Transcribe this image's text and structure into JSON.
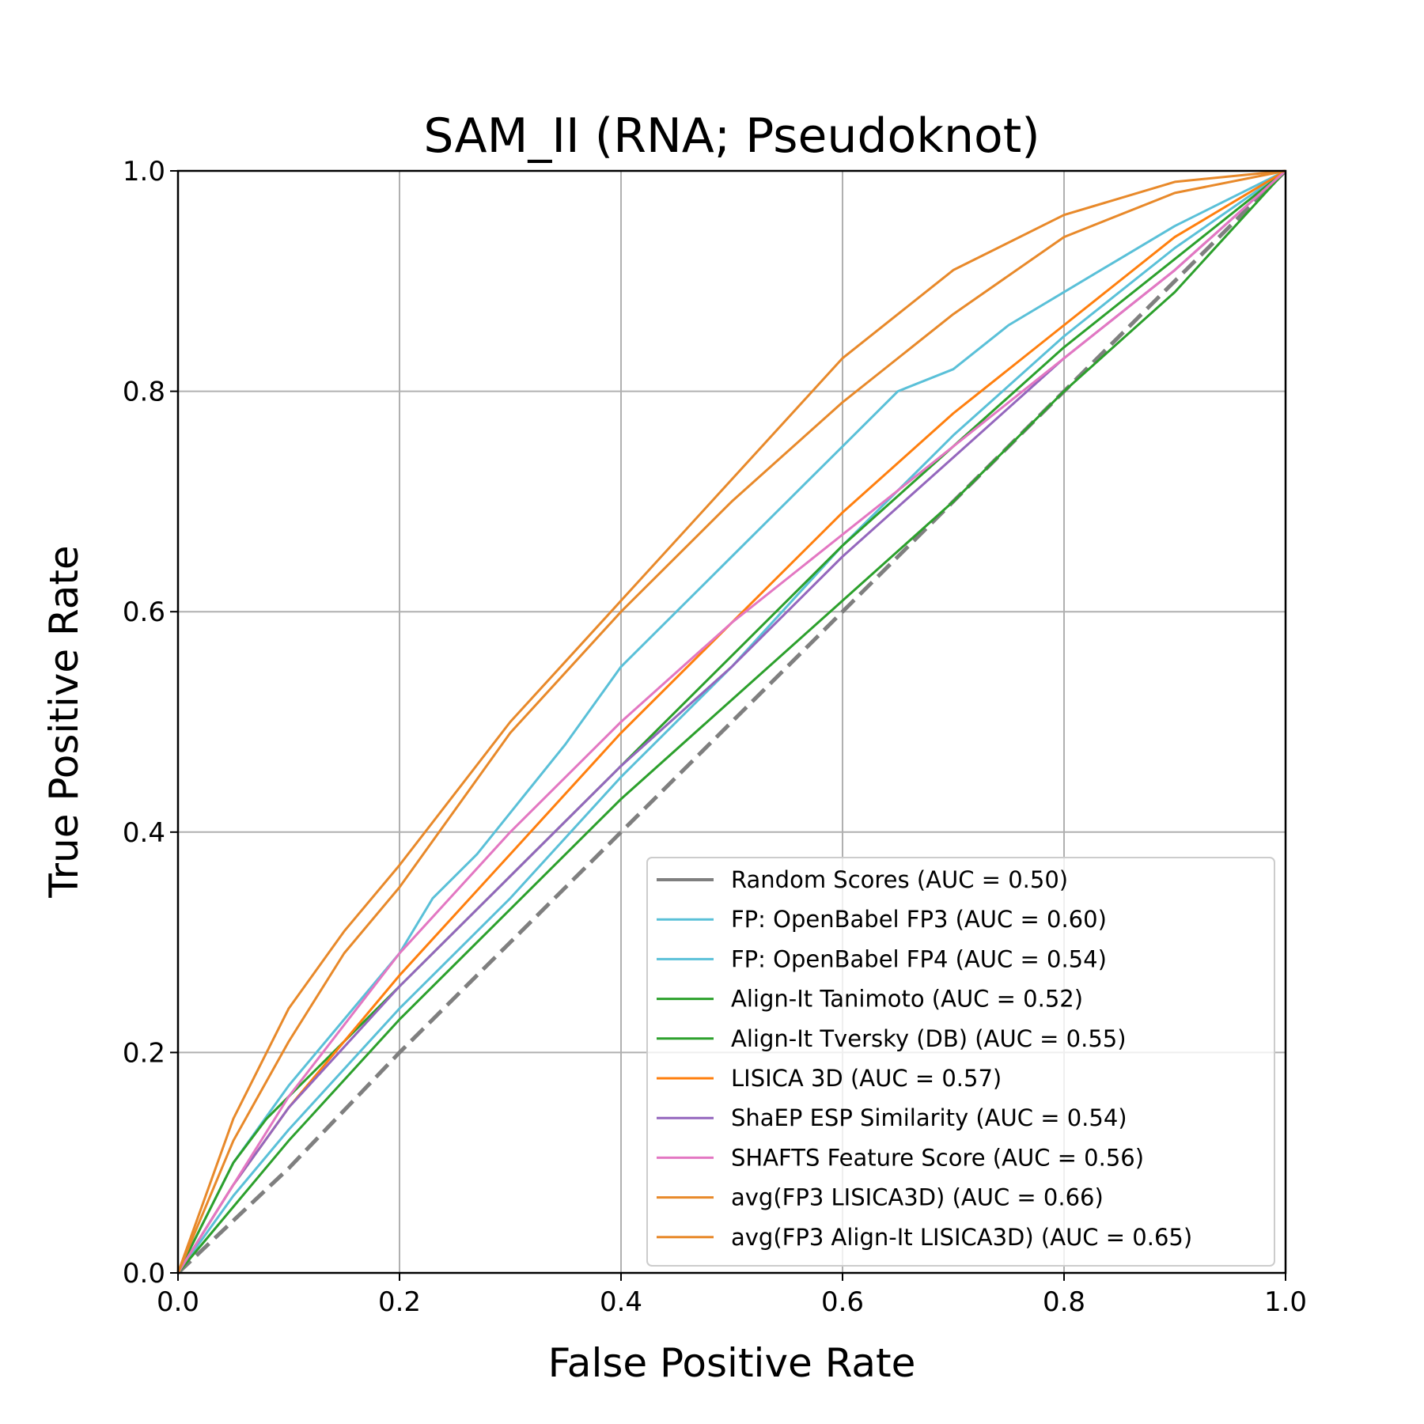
{
  "chart_data": {
    "type": "line",
    "title": "SAM_II (RNA; Pseudoknot)",
    "xlabel": "False Positive Rate",
    "ylabel": "True Positive Rate",
    "xlim": [
      0.0,
      1.0
    ],
    "ylim": [
      0.0,
      1.0
    ],
    "xticks": [
      "0.0",
      "0.2",
      "0.4",
      "0.6",
      "0.8",
      "1.0"
    ],
    "yticks": [
      "0.0",
      "0.2",
      "0.4",
      "0.6",
      "0.8",
      "1.0"
    ],
    "grid": true,
    "legend_position": "lower-right",
    "series": [
      {
        "name": "Random Scores (AUC = 0.50)",
        "color": "#7f7f7f",
        "dash": true,
        "x": [
          0,
          0.1,
          0.2,
          0.3,
          0.4,
          0.5,
          0.6,
          0.7,
          0.8,
          0.9,
          1.0
        ],
        "y": [
          0,
          0.095,
          0.2,
          0.3,
          0.4,
          0.5,
          0.6,
          0.7,
          0.8,
          0.9,
          1.0
        ]
      },
      {
        "name": "FP: OpenBabel FP3 (AUC = 0.60)",
        "color": "#5ac0d8",
        "x": [
          0,
          0.05,
          0.1,
          0.15,
          0.2,
          0.23,
          0.27,
          0.31,
          0.35,
          0.4,
          0.45,
          0.5,
          0.55,
          0.6,
          0.65,
          0.7,
          0.75,
          0.8,
          0.85,
          0.9,
          0.95,
          1.0
        ],
        "y": [
          0,
          0.1,
          0.17,
          0.23,
          0.29,
          0.34,
          0.38,
          0.43,
          0.48,
          0.55,
          0.6,
          0.65,
          0.7,
          0.75,
          0.8,
          0.82,
          0.86,
          0.89,
          0.92,
          0.95,
          0.975,
          1.0
        ]
      },
      {
        "name": "FP: OpenBabel FP4 (AUC = 0.54)",
        "color": "#5ac0d8",
        "x": [
          0,
          0.05,
          0.1,
          0.2,
          0.3,
          0.4,
          0.5,
          0.6,
          0.7,
          0.8,
          0.9,
          1.0
        ],
        "y": [
          0,
          0.07,
          0.13,
          0.24,
          0.34,
          0.45,
          0.55,
          0.66,
          0.76,
          0.85,
          0.93,
          1.0
        ]
      },
      {
        "name": "Align-It Tanimoto (AUC = 0.52)",
        "color": "#2ca02c",
        "x": [
          0,
          0.05,
          0.1,
          0.2,
          0.3,
          0.4,
          0.5,
          0.6,
          0.7,
          0.8,
          0.9,
          1.0
        ],
        "y": [
          0,
          0.06,
          0.12,
          0.23,
          0.33,
          0.43,
          0.52,
          0.61,
          0.7,
          0.8,
          0.89,
          1.0
        ]
      },
      {
        "name": "Align-It Tversky (DB) (AUC = 0.55)",
        "color": "#2ca02c",
        "x": [
          0,
          0.05,
          0.08,
          0.1,
          0.2,
          0.3,
          0.4,
          0.5,
          0.6,
          0.7,
          0.8,
          0.9,
          1.0
        ],
        "y": [
          0,
          0.1,
          0.14,
          0.16,
          0.26,
          0.36,
          0.46,
          0.56,
          0.66,
          0.75,
          0.84,
          0.92,
          1.0
        ]
      },
      {
        "name": "LISICA 3D (AUC = 0.57)",
        "color": "#ff7f0e",
        "x": [
          0,
          0.05,
          0.1,
          0.2,
          0.3,
          0.4,
          0.5,
          0.6,
          0.7,
          0.8,
          0.9,
          1.0
        ],
        "y": [
          0,
          0.08,
          0.15,
          0.27,
          0.38,
          0.49,
          0.59,
          0.69,
          0.78,
          0.86,
          0.94,
          1.0
        ]
      },
      {
        "name": "ShaEP ESP Similarity (AUC = 0.54)",
        "color": "#9467bd",
        "x": [
          0,
          0.05,
          0.1,
          0.2,
          0.3,
          0.4,
          0.5,
          0.6,
          0.7,
          0.8,
          0.9,
          1.0
        ],
        "y": [
          0,
          0.08,
          0.15,
          0.26,
          0.36,
          0.46,
          0.55,
          0.65,
          0.74,
          0.83,
          0.91,
          1.0
        ]
      },
      {
        "name": "SHAFTS Feature Score (AUC = 0.56)",
        "color": "#e377c2",
        "x": [
          0,
          0.05,
          0.1,
          0.2,
          0.3,
          0.4,
          0.5,
          0.6,
          0.7,
          0.8,
          0.9,
          1.0
        ],
        "y": [
          0,
          0.08,
          0.16,
          0.29,
          0.4,
          0.5,
          0.59,
          0.67,
          0.75,
          0.83,
          0.91,
          1.0
        ]
      },
      {
        "name": "avg(FP3 LISICA3D) (AUC = 0.66)",
        "color": "#e8892a",
        "x": [
          0,
          0.05,
          0.1,
          0.15,
          0.2,
          0.3,
          0.4,
          0.5,
          0.6,
          0.7,
          0.8,
          0.9,
          1.0
        ],
        "y": [
          0,
          0.14,
          0.24,
          0.31,
          0.37,
          0.5,
          0.61,
          0.72,
          0.83,
          0.91,
          0.96,
          0.99,
          1.0
        ]
      },
      {
        "name": "avg(FP3 Align-It LISICA3D) (AUC = 0.65)",
        "color": "#e8892a",
        "x": [
          0,
          0.05,
          0.1,
          0.15,
          0.2,
          0.3,
          0.4,
          0.5,
          0.6,
          0.7,
          0.8,
          0.9,
          1.0
        ],
        "y": [
          0,
          0.12,
          0.21,
          0.29,
          0.35,
          0.49,
          0.6,
          0.7,
          0.79,
          0.87,
          0.94,
          0.98,
          1.0
        ]
      }
    ]
  }
}
